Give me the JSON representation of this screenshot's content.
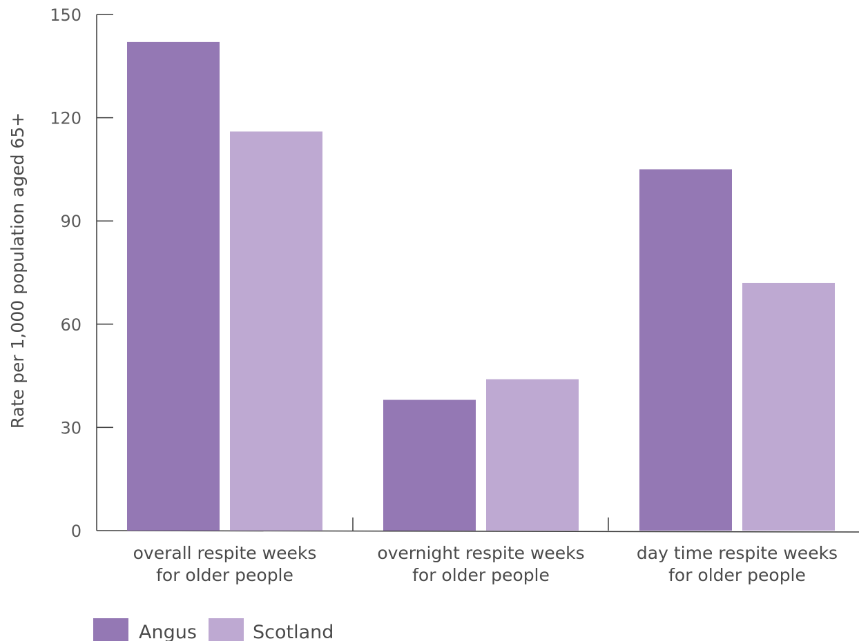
{
  "chart_data": {
    "type": "bar",
    "title": "",
    "xlabel": "",
    "ylabel": "Rate per 1,000 population aged 65+",
    "categories": [
      [
        "overall respite weeks",
        "for older people"
      ],
      [
        "overnight respite weeks",
        "for older people"
      ],
      [
        "day time respite weeks",
        "for older people"
      ]
    ],
    "series": [
      {
        "name": "Angus",
        "values": [
          142,
          38,
          105
        ],
        "color": "#9478b4"
      },
      {
        "name": "Scotland",
        "values": [
          116,
          44,
          72
        ],
        "color": "#bea9d2"
      }
    ],
    "ylim": [
      0,
      150
    ],
    "yticks": [
      0,
      30,
      60,
      90,
      120,
      150
    ],
    "grid": false,
    "legend_position": "bottom-left"
  }
}
